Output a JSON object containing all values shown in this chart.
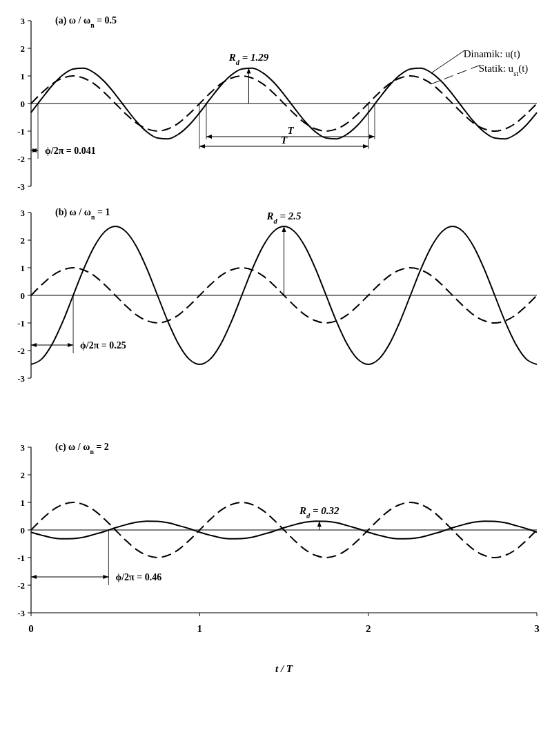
{
  "chart_data": [
    {
      "type": "line",
      "title": "(a) ω / ω$_{n}$ = 0.5",
      "tick_labels": "y",
      "legend": "top right",
      "grid": false,
      "x": [
        0,
        0.0625,
        0.125,
        0.1875,
        0.25,
        0.3125,
        0.375,
        0.4375,
        0.5,
        0.5625,
        0.625,
        0.6875,
        0.75,
        0.8125,
        0.875,
        0.9375,
        1,
        1.0625,
        1.125,
        1.1875,
        1.25,
        1.3125,
        1.375,
        1.4375,
        1.5,
        1.5625,
        1.625,
        1.6875,
        1.75,
        1.8125,
        1.875,
        1.9375,
        2,
        2.0625,
        2.125,
        2.1875,
        2.25,
        2.3125,
        2.375,
        2.4375,
        2.5,
        2.5625,
        2.625,
        2.6875,
        2.75,
        2.8125,
        2.875,
        2.9375,
        3
      ],
      "xlim": [
        0,
        3
      ],
      "ylim": [
        -3,
        3
      ],
      "yticks": [
        -3,
        -2,
        -1,
        0,
        1,
        2,
        3
      ],
      "ref_lines": [
        {
          "axis": "y",
          "value": 0
        }
      ],
      "series": [
        {
          "name": "Dinamik: u(t)",
          "color": "#000000",
          "line_style": "solid",
          "values": [
            -0.33,
            0.17,
            0.65,
            1.03,
            1.25,
            1.28,
            1.11,
            0.78,
            0.33,
            -0.17,
            -0.65,
            -1.03,
            -1.25,
            -1.28,
            -1.11,
            -0.78,
            -0.33,
            0.17,
            0.65,
            1.03,
            1.25,
            1.28,
            1.11,
            0.78,
            0.33,
            -0.17,
            -0.65,
            -1.03,
            -1.25,
            -1.28,
            -1.11,
            -0.78,
            -0.33,
            0.17,
            0.65,
            1.03,
            1.25,
            1.28,
            1.11,
            0.78,
            0.33,
            -0.17,
            -0.65,
            -1.03,
            -1.25,
            -1.28,
            -1.11,
            -0.78,
            -0.33
          ]
        },
        {
          "name": "Statik: u$_{st}$(t)",
          "color": "#000000",
          "line_style": "dashed",
          "values": [
            0,
            0.38,
            0.71,
            0.92,
            1,
            0.92,
            0.71,
            0.38,
            0,
            -0.38,
            -0.71,
            -0.92,
            -1,
            -0.92,
            -0.71,
            -0.38,
            0,
            0.38,
            0.71,
            0.92,
            1,
            0.92,
            0.71,
            0.38,
            0,
            -0.38,
            -0.71,
            -0.92,
            -1,
            -0.92,
            -0.71,
            -0.38,
            0,
            0.38,
            0.71,
            0.92,
            1,
            0.92,
            0.71,
            0.38,
            0,
            -0.38,
            -0.71,
            -0.92,
            -1,
            -0.92,
            -0.71,
            -0.38,
            0
          ]
        }
      ],
      "annotations": [
        {
          "text": "R$_{d}$ = 1.29",
          "x": 1.291,
          "y": 1.29
        },
        {
          "text": "ϕ/2π = 0.041",
          "x": 0.041,
          "y": 0
        },
        "T",
        "T"
      ]
    },
    {
      "type": "line",
      "title": "(b) ω / ω$_{n}$ = 1",
      "tick_labels": "y",
      "grid": false,
      "x": [
        0,
        0.0625,
        0.125,
        0.1875,
        0.25,
        0.3125,
        0.375,
        0.4375,
        0.5,
        0.5625,
        0.625,
        0.6875,
        0.75,
        0.8125,
        0.875,
        0.9375,
        1,
        1.0625,
        1.125,
        1.1875,
        1.25,
        1.3125,
        1.375,
        1.4375,
        1.5,
        1.5625,
        1.625,
        1.6875,
        1.75,
        1.8125,
        1.875,
        1.9375,
        2,
        2.0625,
        2.125,
        2.1875,
        2.25,
        2.3125,
        2.375,
        2.4375,
        2.5,
        2.5625,
        2.625,
        2.6875,
        2.75,
        2.8125,
        2.875,
        2.9375,
        3
      ],
      "xlim": [
        0,
        3
      ],
      "ylim": [
        -3,
        3
      ],
      "yticks": [
        -3,
        -2,
        -1,
        0,
        1,
        2,
        3
      ],
      "ref_lines": [
        {
          "axis": "y",
          "value": 0
        }
      ],
      "series": [
        {
          "color": "#000000",
          "line_style": "solid",
          "values": [
            -2.5,
            -2.31,
            -1.77,
            -0.96,
            0,
            0.96,
            1.77,
            2.31,
            2.5,
            2.31,
            1.77,
            0.96,
            0,
            -0.96,
            -1.77,
            -2.31,
            -2.5,
            -2.31,
            -1.77,
            -0.96,
            0,
            0.96,
            1.77,
            2.31,
            2.5,
            2.31,
            1.77,
            0.96,
            0,
            -0.96,
            -1.77,
            -2.31,
            -2.5,
            -2.31,
            -1.77,
            -0.96,
            0,
            0.96,
            1.77,
            2.31,
            2.5,
            2.31,
            1.77,
            0.96,
            0,
            -0.96,
            -1.77,
            -2.31,
            -2.5
          ]
        },
        {
          "color": "#000000",
          "line_style": "dashed",
          "values": [
            0,
            0.38,
            0.71,
            0.92,
            1,
            0.92,
            0.71,
            0.38,
            0,
            -0.38,
            -0.71,
            -0.92,
            -1,
            -0.92,
            -0.71,
            -0.38,
            0,
            0.38,
            0.71,
            0.92,
            1,
            0.92,
            0.71,
            0.38,
            0,
            -0.38,
            -0.71,
            -0.92,
            -1,
            -0.92,
            -0.71,
            -0.38,
            0,
            0.38,
            0.71,
            0.92,
            1,
            0.92,
            0.71,
            0.38,
            0,
            -0.38,
            -0.71,
            -0.92,
            -1,
            -0.92,
            -0.71,
            -0.38,
            0
          ]
        }
      ],
      "annotations": [
        {
          "text": "R$_{d}$ = 2.5",
          "x": 1.5,
          "y": 2.5
        },
        {
          "text": "ϕ/2π = 0.25",
          "x": 0.25,
          "y": 0
        }
      ]
    },
    {
      "type": "line",
      "title": "(c) ω / ω$_{n}$ = 2",
      "xlabel": "t / T",
      "grid": false,
      "x": [
        0,
        0.0625,
        0.125,
        0.1875,
        0.25,
        0.3125,
        0.375,
        0.4375,
        0.5,
        0.5625,
        0.625,
        0.6875,
        0.75,
        0.8125,
        0.875,
        0.9375,
        1,
        1.0625,
        1.125,
        1.1875,
        1.25,
        1.3125,
        1.375,
        1.4375,
        1.5,
        1.5625,
        1.625,
        1.6875,
        1.75,
        1.8125,
        1.875,
        1.9375,
        2,
        2.0625,
        2.125,
        2.1875,
        2.25,
        2.3125,
        2.375,
        2.4375,
        2.5,
        2.5625,
        2.625,
        2.6875,
        2.75,
        2.8125,
        2.875,
        2.9375,
        3
      ],
      "xlim": [
        0,
        3
      ],
      "xticks": [
        0,
        1,
        2,
        3
      ],
      "ylim": [
        -3,
        3
      ],
      "yticks": [
        -3,
        -2,
        -1,
        0,
        1,
        2,
        3
      ],
      "ref_lines": [
        {
          "axis": "y",
          "value": 0
        }
      ],
      "series": [
        {
          "color": "#000000",
          "line_style": "solid",
          "values": [
            -0.08,
            -0.19,
            -0.28,
            -0.32,
            -0.31,
            -0.26,
            -0.16,
            -0.05,
            0.08,
            0.19,
            0.28,
            0.32,
            0.31,
            0.26,
            0.16,
            0.05,
            -0.08,
            -0.19,
            -0.28,
            -0.32,
            -0.31,
            -0.26,
            -0.16,
            -0.05,
            0.08,
            0.19,
            0.28,
            0.32,
            0.31,
            0.26,
            0.16,
            0.05,
            -0.08,
            -0.19,
            -0.28,
            -0.32,
            -0.31,
            -0.26,
            -0.16,
            -0.05,
            0.08,
            0.19,
            0.28,
            0.32,
            0.31,
            0.26,
            0.16,
            0.05,
            -0.08
          ]
        },
        {
          "color": "#000000",
          "line_style": "dashed",
          "values": [
            0,
            0.38,
            0.71,
            0.92,
            1,
            0.92,
            0.71,
            0.38,
            0,
            -0.38,
            -0.71,
            -0.92,
            -1,
            -0.92,
            -0.71,
            -0.38,
            0,
            0.38,
            0.71,
            0.92,
            1,
            0.92,
            0.71,
            0.38,
            0,
            -0.38,
            -0.71,
            -0.92,
            -1,
            -0.92,
            -0.71,
            -0.38,
            0,
            0.38,
            0.71,
            0.92,
            1,
            0.92,
            0.71,
            0.38,
            0,
            -0.38,
            -0.71,
            -0.92,
            -1,
            -0.92,
            -0.71,
            -0.38,
            0
          ]
        }
      ],
      "annotations": [
        {
          "text": "R$_{d}$ = 0.32",
          "x": 1.71,
          "y": 0.32
        },
        {
          "text": "ϕ/2π = 0.46",
          "x": 0.46,
          "y": 0
        }
      ]
    }
  ]
}
